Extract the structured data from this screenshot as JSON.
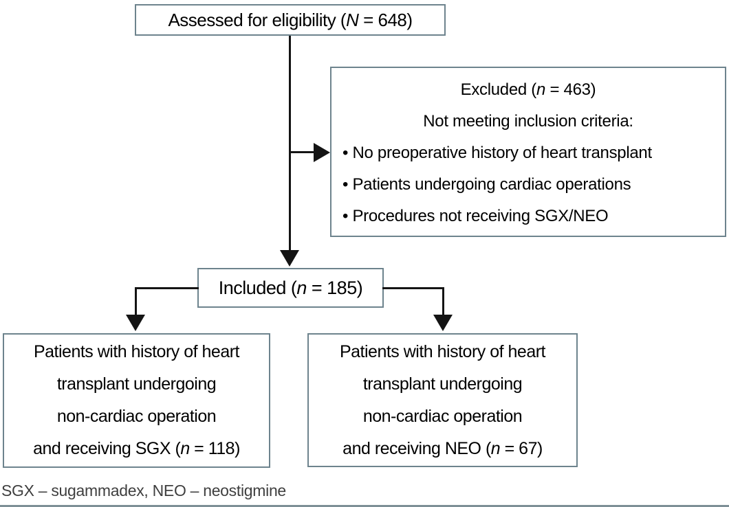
{
  "colors": {
    "box_border": "#6d838d",
    "connector": "#141414",
    "text": "#000000",
    "footnote_text": "#3f3f3f",
    "bottom_rule": "#7d8f96",
    "background": "#ffffff"
  },
  "flowchart": {
    "assessed_box": {
      "text": "Assessed for eligibility (*N* = 648)"
    },
    "excluded_box": {
      "title": "Excluded (*n* = 463)",
      "subtitle": "Not meeting inclusion criteria:",
      "bullets": [
        "• No preoperative history of heart transplant",
        "• Patients undergoing cardiac operations",
        "• Procedures not receiving SGX/NEO"
      ]
    },
    "included_box": {
      "text": "Included (*n* = 185)"
    },
    "sgx_box": {
      "lines": [
        "Patients with history of heart",
        "transplant undergoing",
        "non-cardiac operation",
        "and receiving SGX (*n* = 118)"
      ]
    },
    "neo_box": {
      "lines": [
        "Patients with history of heart",
        "transplant undergoing",
        "non-cardiac operation",
        "and receiving NEO (*n* = 67)"
      ]
    },
    "footnote": "SGX – sugammadex, NEO – neostigmine"
  }
}
